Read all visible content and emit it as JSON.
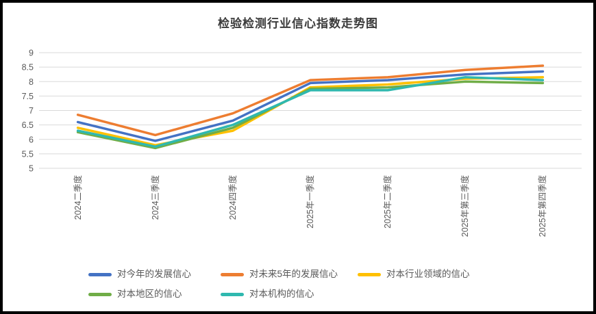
{
  "chart": {
    "title": "检验检测行业信心指数走势图"
  },
  "chart_data": {
    "type": "line",
    "title": "检验检测行业信心指数走势图",
    "categories": [
      "2024二季度",
      "2024三季度",
      "2024四季度",
      "2025年一季度",
      "2025年二季度",
      "2025年第三季度",
      "2025年第四季度"
    ],
    "series": [
      {
        "name": "对今年的发展信心",
        "color": "#4472C4",
        "values": [
          6.6,
          5.95,
          6.65,
          7.95,
          8.05,
          8.25,
          8.35
        ]
      },
      {
        "name": "对未来5年的发展信心",
        "color": "#ED7D31",
        "values": [
          6.85,
          6.15,
          6.9,
          8.05,
          8.15,
          8.4,
          8.55
        ]
      },
      {
        "name": "对本行业领域的信心",
        "color": "#FFC000",
        "values": [
          6.4,
          5.8,
          6.3,
          7.8,
          7.9,
          8.1,
          8.15
        ]
      },
      {
        "name": "对本地区的信心",
        "color": "#70AD47",
        "values": [
          6.25,
          5.7,
          6.4,
          7.75,
          7.8,
          8.0,
          7.95
        ]
      },
      {
        "name": "对本机构的信心",
        "color": "#2FB8AF",
        "values": [
          6.3,
          5.75,
          6.5,
          7.7,
          7.7,
          8.15,
          8.05
        ]
      }
    ],
    "y_axis": {
      "min": 5,
      "max": 9,
      "step": 0.5,
      "tick_labels": [
        "9",
        "8.5",
        "8",
        "7.5",
        "7",
        "6.5",
        "6",
        "5.5",
        "5"
      ]
    },
    "x_label_rotation": -90,
    "grid": true,
    "legend_position": "bottom",
    "legend_rows": [
      3,
      2
    ],
    "colors": {
      "gridline": "#D9D9D9",
      "axis_text": "#595959",
      "title_text": "#3B3B3B",
      "frame_border": "#000000",
      "background": "#FFFFFF"
    }
  }
}
